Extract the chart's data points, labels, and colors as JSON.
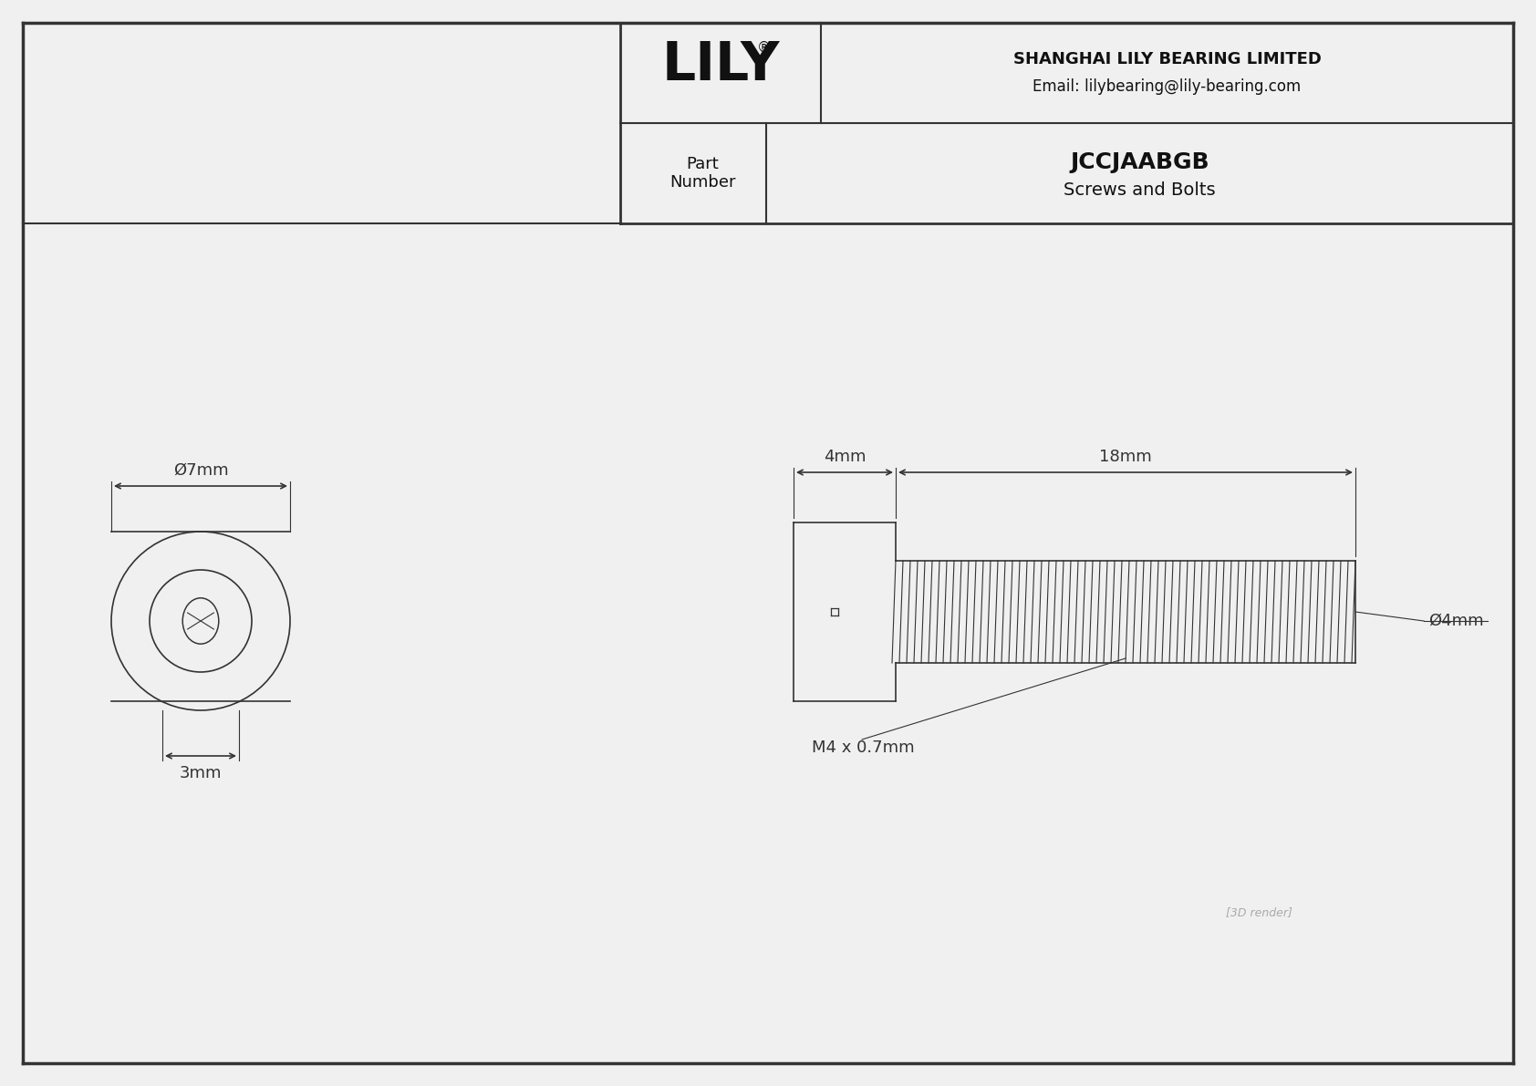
{
  "bg_color": "#f0f0f0",
  "drawing_bg": "#ffffff",
  "border_color": "#333333",
  "line_color": "#333333",
  "title": "JCCJAABGB",
  "subtitle": "Screws and Bolts",
  "company": "SHANGHAI LILY BEARING LIMITED",
  "email": "Email: lilybearing@lily-bearing.com",
  "part_label": "Part\nNumber",
  "lily_text": "LILY",
  "dim_head_diameter": "Ø7mm",
  "dim_head_width": "3mm",
  "dim_body_length": "18mm",
  "dim_head_length": "4mm",
  "dim_screw_diameter": "Ø4mm",
  "dim_thread": "M4 x 0.7mm"
}
